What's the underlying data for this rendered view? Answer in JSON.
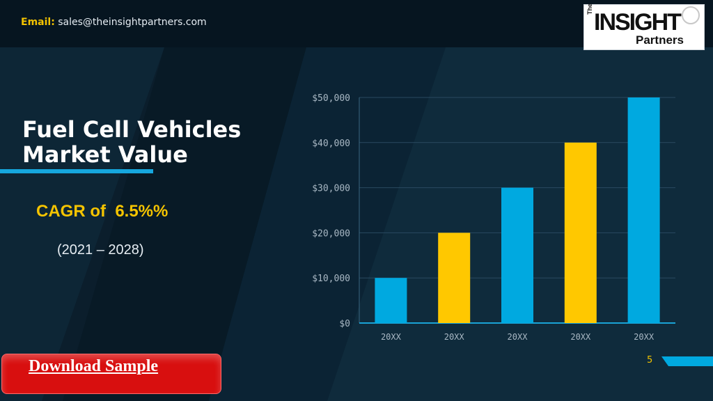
{
  "header": {
    "email_label": "Email:",
    "email_value": "sales@theinsightpartners.com"
  },
  "logo": {
    "the": "The",
    "insight": "INSIGHT",
    "partners": "Partners"
  },
  "main": {
    "title_line1": "Fuel Cell Vehicles",
    "title_line2": "Market Value",
    "cagr": "CAGR of  6.5%%",
    "years": "(2021 – 2028)"
  },
  "download_button": {
    "label": "Download Sample"
  },
  "page_number": "5",
  "colors": {
    "background": "#0b1e2c",
    "accent_blue": "#00a9e0",
    "accent_yellow": "#ffc800",
    "button_red": "#d80f0f"
  },
  "chart_data": {
    "type": "bar",
    "categories": [
      "20XX",
      "20XX",
      "20XX",
      "20XX",
      "20XX"
    ],
    "values": [
      10000,
      20000,
      30000,
      40000,
      50000
    ],
    "bar_colors": [
      "#00a9e0",
      "#ffc800",
      "#00a9e0",
      "#ffc800",
      "#00a9e0"
    ],
    "y_ticks": [
      "$0",
      "$10,000",
      "$20,000",
      "$30,000",
      "$40,000",
      "$50,000"
    ],
    "ylim": [
      0,
      50000
    ],
    "title": "",
    "xlabel": "",
    "ylabel": "",
    "grid": true,
    "legend": "none"
  }
}
